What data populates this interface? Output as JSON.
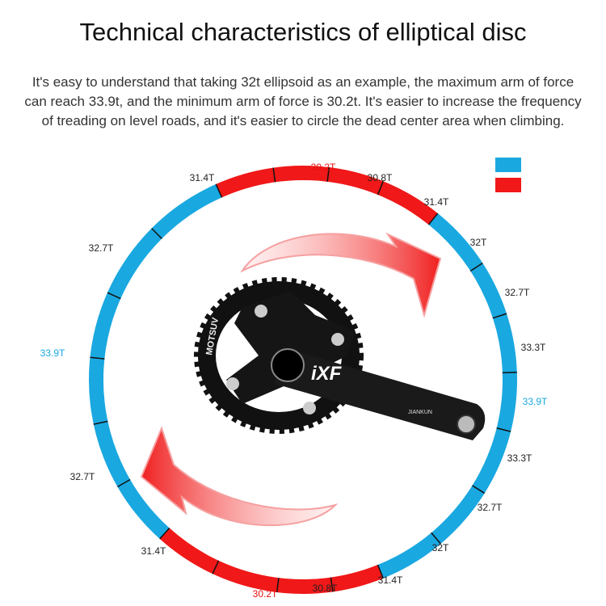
{
  "title": "Technical characteristics of elliptical disc",
  "description": "It's easy to understand that taking 32t ellipsoid as an example, the maximum arm of force can reach 33.9t, and the minimum arm of force is 30.2t. It's easier to increase the frequency of treading on level roads, and it's easier to circle the dead center area when climbing.",
  "colors": {
    "blue": "#1aa8e0",
    "red": "#f01818"
  },
  "legend": [
    {
      "color": "#1aa8e0"
    },
    {
      "color": "#f01818"
    }
  ],
  "ring_labels": [
    {
      "text": "31.4T",
      "tone": "normal"
    },
    {
      "text": "30.2T",
      "tone": "red"
    },
    {
      "text": "30.8T",
      "tone": "normal"
    },
    {
      "text": "31.4T",
      "tone": "normal"
    },
    {
      "text": "32T",
      "tone": "normal"
    },
    {
      "text": "32.7T",
      "tone": "normal"
    },
    {
      "text": "33.3T",
      "tone": "normal"
    },
    {
      "text": "33.9T",
      "tone": "blue"
    },
    {
      "text": "33.3T",
      "tone": "normal"
    },
    {
      "text": "32.7T",
      "tone": "normal"
    },
    {
      "text": "32T",
      "tone": "normal"
    },
    {
      "text": "31.4T",
      "tone": "normal"
    },
    {
      "text": "30.8T",
      "tone": "normal"
    },
    {
      "text": "30.2T",
      "tone": "red"
    },
    {
      "text": "31.4T",
      "tone": "normal"
    },
    {
      "text": "32.7T",
      "tone": "normal"
    },
    {
      "text": "33.9T",
      "tone": "blue"
    },
    {
      "text": "32.7T",
      "tone": "normal"
    }
  ],
  "crank": {
    "brand_arm": "iXF",
    "brand_small": "JIANKUN",
    "brand_ring": "MOTSUV"
  }
}
